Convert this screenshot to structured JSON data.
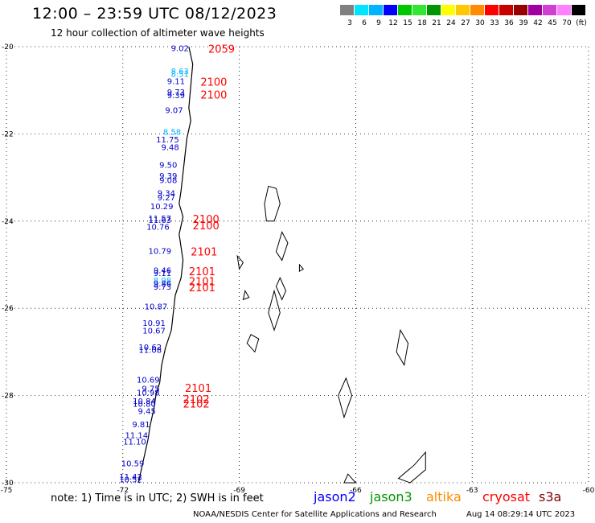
{
  "title": "12:00 – 23:59 UTC 08/12/2023",
  "subtitle": "12 hour collection of altimeter wave heights",
  "legend": {
    "colors": [
      "#808080",
      "#00e5ff",
      "#00b4ff",
      "#0000ff",
      "#00c800",
      "#32e632",
      "#009600",
      "#ffff00",
      "#ffc800",
      "#ff8c00",
      "#ff0000",
      "#c80000",
      "#960000",
      "#a000a0",
      "#d040d0",
      "#ff80ff",
      "#000000"
    ],
    "labels": [
      "3",
      "6",
      "9",
      "12",
      "15",
      "18",
      "21",
      "24",
      "27",
      "30",
      "33",
      "36",
      "39",
      "42",
      "45",
      "70",
      "(ft)"
    ]
  },
  "chart_data": {
    "type": "scatter",
    "title": "12 hour collection of altimeter wave heights",
    "xlabel": "",
    "ylabel": "",
    "xlim": [
      -75,
      -60
    ],
    "ylim": [
      -30,
      -20
    ],
    "x_ticks": [
      "-75",
      "-72",
      "-69",
      "-66",
      "-63",
      "-60"
    ],
    "y_ticks": [
      "-20",
      "-22",
      "-24",
      "-26",
      "-28",
      "-30"
    ],
    "grid": true,
    "swh_points": [
      {
        "lat": -20.03,
        "lon": -70.3,
        "value": "9.02"
      },
      {
        "lat": -20.55,
        "lon": -70.3,
        "value": "8.63"
      },
      {
        "lat": -20.62,
        "lon": -70.3,
        "value": "8.51"
      },
      {
        "lat": -20.78,
        "lon": -70.4,
        "value": "9.11"
      },
      {
        "lat": -21.03,
        "lon": -70.4,
        "value": "9.73"
      },
      {
        "lat": -21.11,
        "lon": -70.4,
        "value": "9.39"
      },
      {
        "lat": -21.45,
        "lon": -70.45,
        "value": "9.07"
      },
      {
        "lat": -21.95,
        "lon": -70.5,
        "value": "8.58"
      },
      {
        "lat": -22.12,
        "lon": -70.55,
        "value": "11.75"
      },
      {
        "lat": -22.3,
        "lon": -70.55,
        "value": "9.48"
      },
      {
        "lat": -22.7,
        "lon": -70.6,
        "value": "9.50"
      },
      {
        "lat": -22.95,
        "lon": -70.6,
        "value": "9.39"
      },
      {
        "lat": -23.05,
        "lon": -70.6,
        "value": "9.08"
      },
      {
        "lat": -23.35,
        "lon": -70.65,
        "value": "9.34"
      },
      {
        "lat": -23.45,
        "lon": -70.65,
        "value": "9.27"
      },
      {
        "lat": -23.65,
        "lon": -70.7,
        "value": "10.29"
      },
      {
        "lat": -23.93,
        "lon": -70.75,
        "value": "11.57"
      },
      {
        "lat": -23.97,
        "lon": -70.75,
        "value": "11.63"
      },
      {
        "lat": -24.12,
        "lon": -70.8,
        "value": "10.76"
      },
      {
        "lat": -24.68,
        "lon": -70.75,
        "value": "10.79"
      },
      {
        "lat": -25.12,
        "lon": -70.75,
        "value": "9.46"
      },
      {
        "lat": -25.18,
        "lon": -70.75,
        "value": "9.11"
      },
      {
        "lat": -25.35,
        "lon": -70.75,
        "value": "8.98"
      },
      {
        "lat": -25.42,
        "lon": -70.75,
        "value": "9.86"
      },
      {
        "lat": -25.5,
        "lon": -70.75,
        "value": "9.73"
      },
      {
        "lat": -25.95,
        "lon": -70.85,
        "value": "10.87"
      },
      {
        "lat": -26.33,
        "lon": -70.9,
        "value": "10.91"
      },
      {
        "lat": -26.5,
        "lon": -70.9,
        "value": "10.67"
      },
      {
        "lat": -26.88,
        "lon": -71.0,
        "value": "10.62"
      },
      {
        "lat": -26.95,
        "lon": -71.0,
        "value": "11.08"
      },
      {
        "lat": -27.63,
        "lon": -71.05,
        "value": "10.69"
      },
      {
        "lat": -27.83,
        "lon": -71.05,
        "value": "9.75"
      },
      {
        "lat": -27.92,
        "lon": -71.05,
        "value": "10.98"
      },
      {
        "lat": -28.12,
        "lon": -71.15,
        "value": "10.84"
      },
      {
        "lat": -28.18,
        "lon": -71.15,
        "value": "10.80"
      },
      {
        "lat": -28.35,
        "lon": -71.15,
        "value": "9.45"
      },
      {
        "lat": -28.65,
        "lon": -71.3,
        "value": "9.81"
      },
      {
        "lat": -28.9,
        "lon": -71.35,
        "value": "11.14"
      },
      {
        "lat": -29.05,
        "lon": -71.4,
        "value": "11.10"
      },
      {
        "lat": -29.55,
        "lon": -71.45,
        "value": "10.59"
      },
      {
        "lat": -29.85,
        "lon": -71.5,
        "value": "11.42"
      },
      {
        "lat": -29.92,
        "lon": -71.5,
        "value": "10.52"
      }
    ],
    "time_labels": [
      {
        "lat": -20.05,
        "lon": -69.8,
        "value": "2059"
      },
      {
        "lat": -20.8,
        "lon": -70.0,
        "value": "2100"
      },
      {
        "lat": -21.1,
        "lon": -70.0,
        "value": "2100"
      },
      {
        "lat": -23.95,
        "lon": -70.2,
        "value": "2100"
      },
      {
        "lat": -24.1,
        "lon": -70.2,
        "value": "2100"
      },
      {
        "lat": -24.7,
        "lon": -70.25,
        "value": "2101"
      },
      {
        "lat": -25.15,
        "lon": -70.3,
        "value": "2101"
      },
      {
        "lat": -25.38,
        "lon": -70.3,
        "value": "2101"
      },
      {
        "lat": -25.52,
        "lon": -70.3,
        "value": "2101"
      },
      {
        "lat": -27.82,
        "lon": -70.4,
        "value": "2101"
      },
      {
        "lat": -28.08,
        "lon": -70.45,
        "value": "2102"
      },
      {
        "lat": -28.18,
        "lon": -70.45,
        "value": "2102"
      }
    ]
  },
  "footer": {
    "note": "note: 1) Time is in UTC; 2) SWH is in feet",
    "satellites": [
      {
        "name": "jason2",
        "color": "#0000ff"
      },
      {
        "name": "jason3",
        "color": "#009600"
      },
      {
        "name": "altika",
        "color": "#ff8c00"
      },
      {
        "name": "cryosat",
        "color": "#ff0000"
      },
      {
        "name": "s3a",
        "color": "#800000"
      }
    ],
    "credit": "NOAA/NESDIS Center for Satellite Applications and Research",
    "timestamp": "Aug 14 08:29:14 UTC 2023"
  },
  "colors": {
    "swh_text": "#0000c8",
    "swh_light": "#00b4ff",
    "time_text": "#ff0000",
    "grid": "#000000"
  }
}
